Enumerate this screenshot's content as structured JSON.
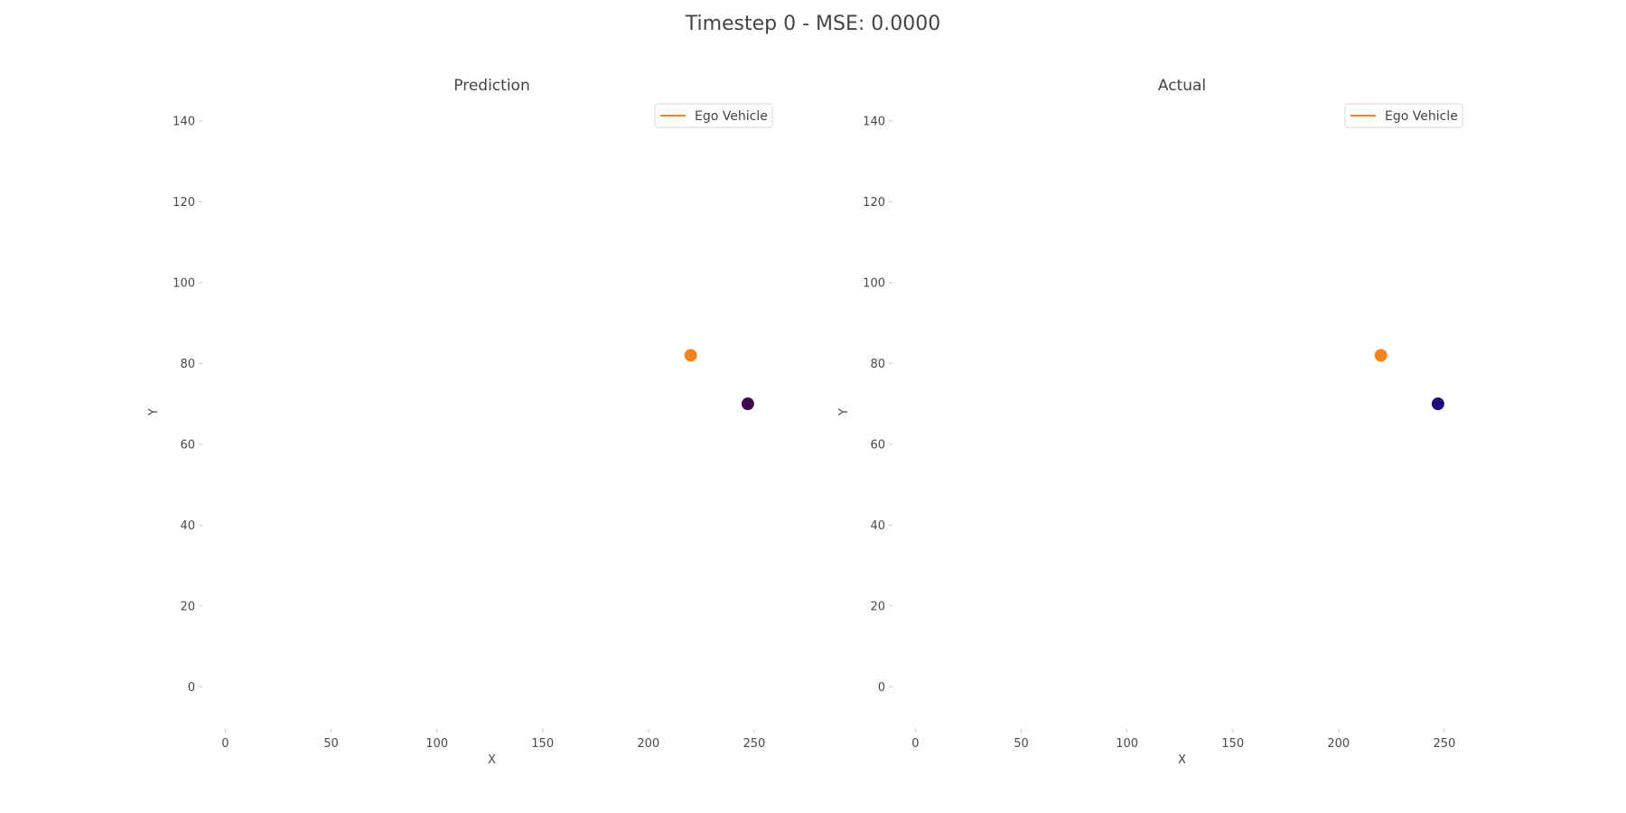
{
  "figure_title": "Timestep 0 - MSE: 0.0000",
  "colors": {
    "ego": "#f28322",
    "pred_vehicle": "#3b0a4f",
    "actual_vehicle": "#1e0b7a"
  },
  "chart_data": [
    {
      "type": "scatter",
      "title": "Prediction",
      "xlabel": "X",
      "ylabel": "Y",
      "xlim": [
        -10,
        262
      ],
      "ylim": [
        -10,
        146
      ],
      "xticks": [
        0,
        50,
        100,
        150,
        200,
        250
      ],
      "yticks": [
        0,
        20,
        40,
        60,
        80,
        100,
        120,
        140
      ],
      "grid": false,
      "legend": {
        "placement": "top-right",
        "entries": [
          {
            "label": "Ego Vehicle",
            "color": "#f28322"
          }
        ]
      },
      "points": [
        {
          "series": "ego",
          "x": 220,
          "y": 82,
          "color": "#f28322"
        },
        {
          "series": "vehicle",
          "x": 247,
          "y": 70,
          "color": "#3b0a4f"
        }
      ]
    },
    {
      "type": "scatter",
      "title": "Actual",
      "xlabel": "X",
      "ylabel": "Y",
      "xlim": [
        -10,
        262
      ],
      "ylim": [
        -10,
        146
      ],
      "xticks": [
        0,
        50,
        100,
        150,
        200,
        250
      ],
      "yticks": [
        0,
        20,
        40,
        60,
        80,
        100,
        120,
        140
      ],
      "grid": false,
      "legend": {
        "placement": "top-right",
        "entries": [
          {
            "label": "Ego Vehicle",
            "color": "#f28322"
          }
        ]
      },
      "points": [
        {
          "series": "ego",
          "x": 220,
          "y": 82,
          "color": "#f28322"
        },
        {
          "series": "vehicle",
          "x": 247,
          "y": 70,
          "color": "#1e0b7a"
        }
      ]
    }
  ]
}
